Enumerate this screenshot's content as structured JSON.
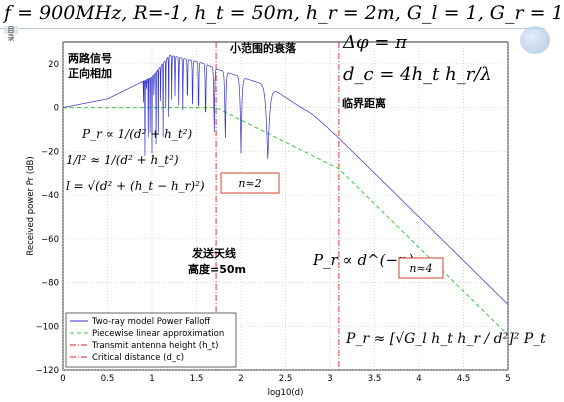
{
  "header": {
    "params_text": "f = 900MHz, R=-1, h_t = 50m, h_r = 2m, G_l = 1, G_r = 1",
    "stamp_text": "目 录"
  },
  "chart_data": {
    "type": "line",
    "xlabel": "log10(d)",
    "ylabel": "Received power Pr (dB)",
    "xlim": [
      0,
      5
    ],
    "ylim": [
      -120,
      30
    ],
    "x_ticks": [
      "0",
      "0.5",
      "1",
      "1.5",
      "2",
      "2.5",
      "3",
      "3.5",
      "4",
      "4.5",
      "5"
    ],
    "y_ticks": [
      "20",
      "0",
      "−20",
      "−40",
      "−60",
      "−80",
      "−100",
      "−120"
    ],
    "grid": true,
    "legend_position": "bottom-left",
    "series": [
      {
        "name": "Two-ray model Power Falloff",
        "style": "solid",
        "color": "#3333cc",
        "x": [
          0.0,
          0.5,
          1.0,
          1.2,
          1.6,
          1.7,
          2.3,
          2.6,
          2.8,
          3.0,
          3.1,
          3.5,
          4.0,
          4.5,
          5.0
        ],
        "y": [
          0.0,
          4.0,
          14.0,
          24.0,
          20.0,
          18.0,
          10.0,
          2.0,
          -3.0,
          -10.0,
          -14.0,
          -30.0,
          -50.0,
          -70.0,
          -90.0
        ]
      },
      {
        "name": "Piecewise linear approximation",
        "style": "dashed",
        "color": "#33cc33",
        "x": [
          0.0,
          1.72,
          3.1,
          5.0
        ],
        "y": [
          0.0,
          0.0,
          -28.0,
          -104.0
        ]
      }
    ],
    "vertical_lines": [
      {
        "name": "Transmit antenna height (h_t)",
        "x": 1.72,
        "color": "#dd2222",
        "style": "dashdot"
      },
      {
        "name": "Critical distance (d_c)",
        "x": 3.1,
        "color": "#dd2222",
        "style": "dashdot"
      }
    ],
    "legend": [
      "Two-ray model Power Falloff",
      "Piecewise linear approximation",
      "Transmit antenna height (h_t)",
      "Critical distance (d_c)"
    ]
  },
  "annotations": {
    "two_path": "两路信号正向相加",
    "small_scale": "小范围的衰落",
    "critical": "临界距离",
    "antenna": "发送天线高度=50m",
    "delta_phi": "Δφ = π",
    "dc_formula": "d_c = 4h_t h_r/λ",
    "pr_prop1": "P_r ∝ 1/(d² + h_t²)",
    "inv_l2": "1/l² ≈ 1/(d² + h_t²)",
    "l_formula": "l = √(d² + (h_t − h_r)²)",
    "pr_d_n": "P_r ∝ d^(−n)",
    "n2": "n≈2",
    "n4": "n≈4",
    "pr_big": "P_r ≈ [√G_l h_t h_r / d²]² P_t"
  }
}
